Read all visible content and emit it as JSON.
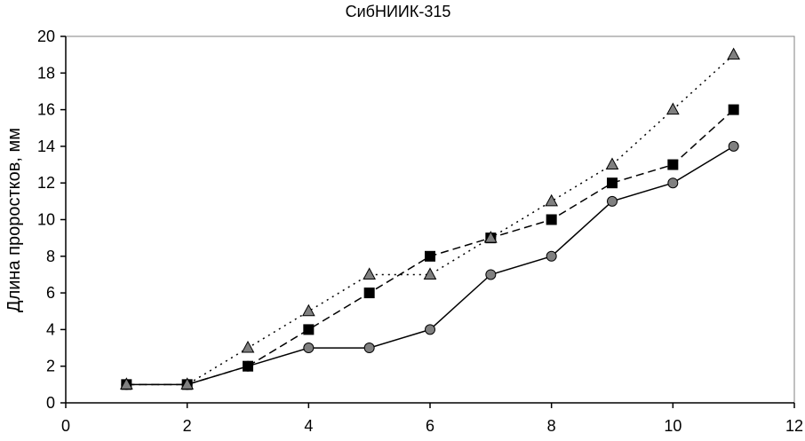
{
  "chart_data": {
    "type": "line",
    "title": "СибНИИК-315",
    "xlabel": "",
    "ylabel": "Длина проростков, мм",
    "xlim": [
      0,
      12
    ],
    "ylim": [
      0,
      20
    ],
    "xticks": [
      0,
      2,
      4,
      6,
      8,
      10,
      12
    ],
    "yticks": [
      0,
      2,
      4,
      6,
      8,
      10,
      12,
      14,
      16,
      18,
      20
    ],
    "grid": false,
    "legend": "none",
    "x": [
      1,
      2,
      3,
      4,
      5,
      6,
      7,
      8,
      9,
      10,
      11
    ],
    "series": [
      {
        "marker": "circle",
        "line_style": "solid",
        "marker_color": "#808080",
        "line_color": "#000000",
        "values": [
          1,
          1,
          2,
          3,
          3,
          4,
          7,
          8,
          11,
          12,
          14
        ]
      },
      {
        "marker": "square",
        "line_style": "dashed",
        "marker_color": "#000000",
        "line_color": "#000000",
        "values": [
          1,
          1,
          2,
          4,
          6,
          8,
          9,
          10,
          12,
          13,
          16
        ]
      },
      {
        "marker": "triangle",
        "line_style": "dotted",
        "marker_color": "#808080",
        "line_color": "#000000",
        "values": [
          1,
          1,
          3,
          5,
          7,
          7,
          9,
          11,
          13,
          16,
          19
        ]
      }
    ]
  }
}
